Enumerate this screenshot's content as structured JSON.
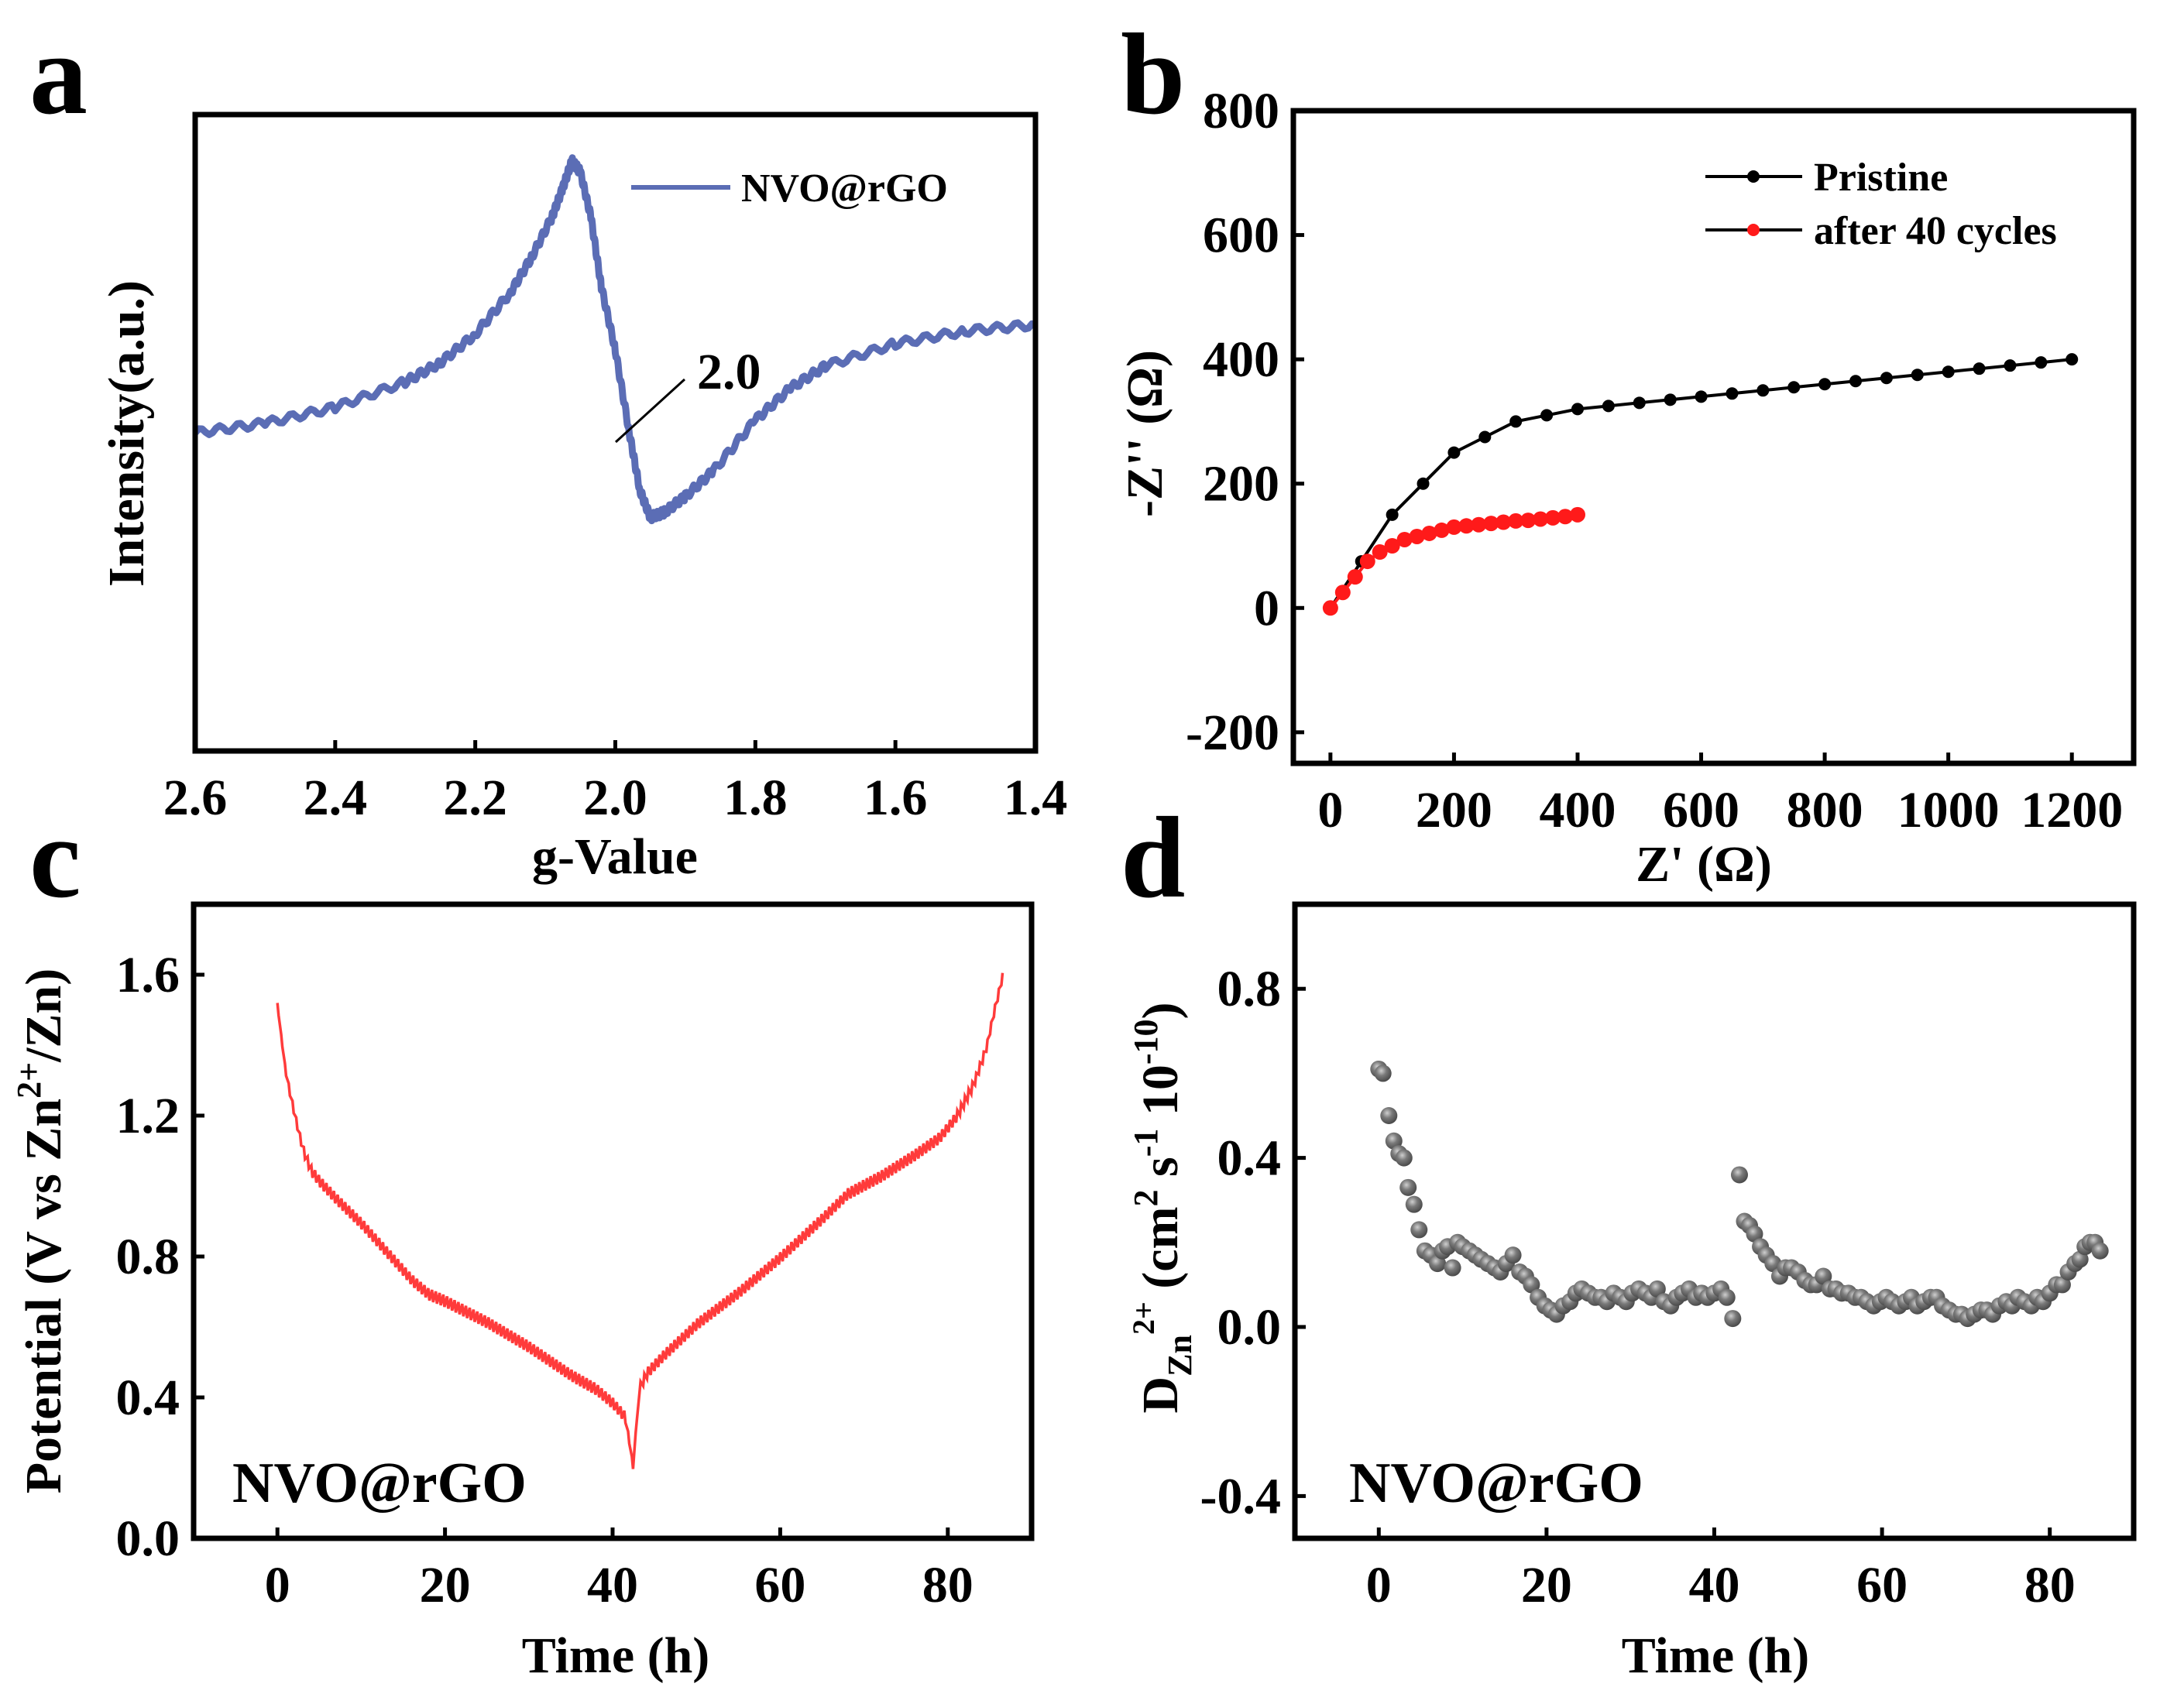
{
  "panel_labels": [
    "a",
    "b",
    "c",
    "d"
  ],
  "colors": {
    "epr": "#5B6DB5",
    "pristine": "#000000",
    "after_cycles": "#FF1A1A",
    "gitt": "#FF3B3B",
    "diffusion": "#4A4A4A"
  },
  "chart_data": [
    {
      "id": "a",
      "type": "line",
      "title": "",
      "xlabel": "g-Value",
      "ylabel": "Intensity(a.u.)",
      "xlim": [
        2.6,
        1.4
      ],
      "x_reversed": true,
      "ylim": [
        0,
        1
      ],
      "yticks_shown": false,
      "xticks": [
        "2.6",
        "2.4",
        "2.2",
        "2.0",
        "1.8",
        "1.6",
        "1.4"
      ],
      "legend": {
        "entries": [
          "NVO@rGO"
        ],
        "placement": "top-right"
      },
      "annotation": {
        "text": "2.0",
        "at_x": 2.0
      },
      "series": [
        {
          "name": "NVO@rGO",
          "x": [
            2.6,
            2.5,
            2.4,
            2.3,
            2.25,
            2.2,
            2.15,
            2.12,
            2.09,
            2.075,
            2.062,
            2.05,
            2.035,
            2.02,
            2.0,
            1.98,
            1.965,
            1.95,
            1.93,
            1.9,
            1.86,
            1.8,
            1.75,
            1.7,
            1.6,
            1.5,
            1.4
          ],
          "y": [
            0.5,
            0.515,
            0.54,
            0.58,
            0.61,
            0.655,
            0.72,
            0.775,
            0.84,
            0.885,
            0.927,
            0.91,
            0.84,
            0.73,
            0.63,
            0.5,
            0.41,
            0.367,
            0.375,
            0.4,
            0.44,
            0.52,
            0.57,
            0.605,
            0.64,
            0.66,
            0.67
          ]
        }
      ]
    },
    {
      "id": "b",
      "type": "line",
      "title": "",
      "xlabel": "Z' (Ω)",
      "ylabel": "-Z'' (Ω)",
      "xlim": [
        -60,
        1300
      ],
      "ylim": [
        -250,
        800
      ],
      "xticks": [
        "0",
        "200",
        "400",
        "600",
        "800",
        "1000",
        "1200"
      ],
      "yticks": [
        "-200",
        "0",
        "200",
        "400",
        "600",
        "800"
      ],
      "legend": {
        "entries": [
          "Pristine",
          "after 40 cycles"
        ],
        "placement": "top-right"
      },
      "series": [
        {
          "name": "Pristine",
          "x": [
            0,
            50,
            100,
            150,
            200,
            250,
            300,
            350,
            400,
            450,
            500,
            550,
            600,
            650,
            700,
            750,
            800,
            850,
            900,
            950,
            1000,
            1050,
            1100,
            1150,
            1200
          ],
          "y": [
            0,
            75,
            150,
            200,
            250,
            275,
            300,
            310,
            320,
            325,
            330,
            335,
            340,
            345,
            350,
            355,
            360,
            365,
            370,
            375,
            380,
            385,
            390,
            395,
            400
          ]
        },
        {
          "name": "after 40 cycles",
          "x": [
            0,
            20,
            40,
            60,
            80,
            100,
            120,
            140,
            160,
            180,
            200,
            220,
            240,
            260,
            280,
            300,
            320,
            340,
            360,
            380,
            400
          ],
          "y": [
            0,
            25,
            50,
            75,
            90,
            100,
            110,
            115,
            120,
            125,
            130,
            132,
            134,
            136,
            138,
            140,
            141,
            143,
            145,
            147,
            150
          ]
        }
      ]
    },
    {
      "id": "c",
      "type": "line",
      "title": "",
      "xlabel": "Time (h)",
      "ylabel": "Potential (V vs Zn2+/Zn)",
      "xlim": [
        -10,
        90
      ],
      "ylim": [
        0,
        1.8
      ],
      "xticks": [
        "0",
        "20",
        "40",
        "60",
        "80"
      ],
      "yticks": [
        "0.0",
        "0.4",
        "0.8",
        "1.2",
        "1.6"
      ],
      "sample_label": "NVO@rGO",
      "series": [
        {
          "name": "NVO@rGO",
          "x": [
            0,
            0.5,
            1,
            2,
            3,
            4,
            5,
            7,
            10,
            13,
            16,
            18,
            20,
            25,
            30,
            35,
            38,
            40,
            41.5,
            42.5,
            43,
            44,
            46,
            50,
            55,
            60,
            65,
            68,
            72,
            76,
            79,
            81,
            83,
            84.5,
            85.5,
            86.5
          ],
          "y": [
            1.52,
            1.42,
            1.33,
            1.22,
            1.12,
            1.06,
            1.03,
            0.98,
            0.91,
            0.83,
            0.75,
            0.71,
            0.69,
            0.63,
            0.56,
            0.48,
            0.44,
            0.4,
            0.36,
            0.2,
            0.4,
            0.45,
            0.5,
            0.59,
            0.68,
            0.78,
            0.89,
            0.96,
            1.01,
            1.07,
            1.12,
            1.18,
            1.27,
            1.37,
            1.48,
            1.58
          ]
        }
      ]
    },
    {
      "id": "d",
      "type": "scatter",
      "title": "",
      "xlabel": "Time (h)",
      "ylabel": "D_Zn2+ (cm2 s-1 10-10)",
      "xlim": [
        -10,
        90
      ],
      "ylim": [
        -0.5,
        1.0
      ],
      "xticks": [
        "0",
        "20",
        "40",
        "60",
        "80"
      ],
      "yticks": [
        "-0.4",
        "0.0",
        "0.4",
        "0.8"
      ],
      "sample_label": "NVO@rGO",
      "series": [
        {
          "name": "NVO@rGO",
          "x": [
            0,
            0.5,
            1.2,
            1.8,
            2.4,
            3.0,
            3.5,
            4.2,
            4.8,
            5.5,
            6.2,
            7.0,
            7.6,
            8.2,
            8.8,
            9.4,
            10.0,
            10.8,
            11.5,
            12.2,
            13.0,
            13.8,
            14.5,
            15.2,
            16.0,
            16.8,
            17.5,
            18.2,
            19.0,
            19.8,
            20.5,
            21.2,
            22.0,
            22.8,
            23.5,
            24.2,
            25.0,
            25.8,
            26.5,
            27.2,
            28.0,
            28.8,
            29.5,
            30.2,
            31.0,
            31.8,
            32.5,
            33.2,
            34.0,
            34.8,
            35.5,
            36.2,
            37.0,
            37.8,
            38.5,
            39.2,
            40.0,
            40.8,
            41.5,
            42.2,
            43.0,
            43.6,
            44.2,
            44.8,
            45.5,
            46.2,
            47.0,
            47.8,
            48.5,
            49.2,
            50.0,
            50.8,
            51.5,
            52.2,
            53.0,
            53.8,
            54.5,
            55.2,
            56.0,
            56.8,
            57.5,
            58.2,
            59.0,
            59.8,
            60.5,
            61.2,
            62.0,
            62.8,
            63.5,
            64.2,
            65.0,
            65.8,
            66.5,
            67.2,
            68.0,
            68.8,
            69.5,
            70.2,
            71.0,
            71.8,
            72.5,
            73.2,
            74.0,
            74.8,
            75.5,
            76.2,
            77.0,
            77.8,
            78.5,
            79.2,
            80.0,
            80.8,
            81.5,
            82.2,
            83.0,
            83.6,
            84.2,
            84.8,
            85.4,
            86.0
          ],
          "y": [
            0.61,
            0.6,
            0.5,
            0.44,
            0.41,
            0.4,
            0.33,
            0.29,
            0.23,
            0.18,
            0.17,
            0.15,
            0.18,
            0.19,
            0.14,
            0.2,
            0.19,
            0.18,
            0.17,
            0.16,
            0.15,
            0.14,
            0.13,
            0.15,
            0.17,
            0.13,
            0.12,
            0.1,
            0.07,
            0.05,
            0.04,
            0.03,
            0.05,
            0.06,
            0.08,
            0.09,
            0.08,
            0.07,
            0.07,
            0.06,
            0.08,
            0.07,
            0.06,
            0.08,
            0.09,
            0.08,
            0.07,
            0.09,
            0.06,
            0.05,
            0.07,
            0.08,
            0.09,
            0.07,
            0.08,
            0.07,
            0.08,
            0.09,
            0.07,
            0.02,
            0.36,
            0.25,
            0.24,
            0.22,
            0.19,
            0.17,
            0.15,
            0.12,
            0.14,
            0.14,
            0.13,
            0.11,
            0.1,
            0.1,
            0.12,
            0.09,
            0.09,
            0.08,
            0.08,
            0.07,
            0.07,
            0.06,
            0.05,
            0.06,
            0.07,
            0.06,
            0.05,
            0.06,
            0.07,
            0.05,
            0.06,
            0.07,
            0.07,
            0.05,
            0.04,
            0.03,
            0.03,
            0.02,
            0.03,
            0.04,
            0.04,
            0.03,
            0.05,
            0.06,
            0.05,
            0.07,
            0.06,
            0.05,
            0.07,
            0.06,
            0.08,
            0.1,
            0.1,
            0.13,
            0.15,
            0.16,
            0.19,
            0.2,
            0.2,
            0.18
          ]
        }
      ]
    }
  ]
}
